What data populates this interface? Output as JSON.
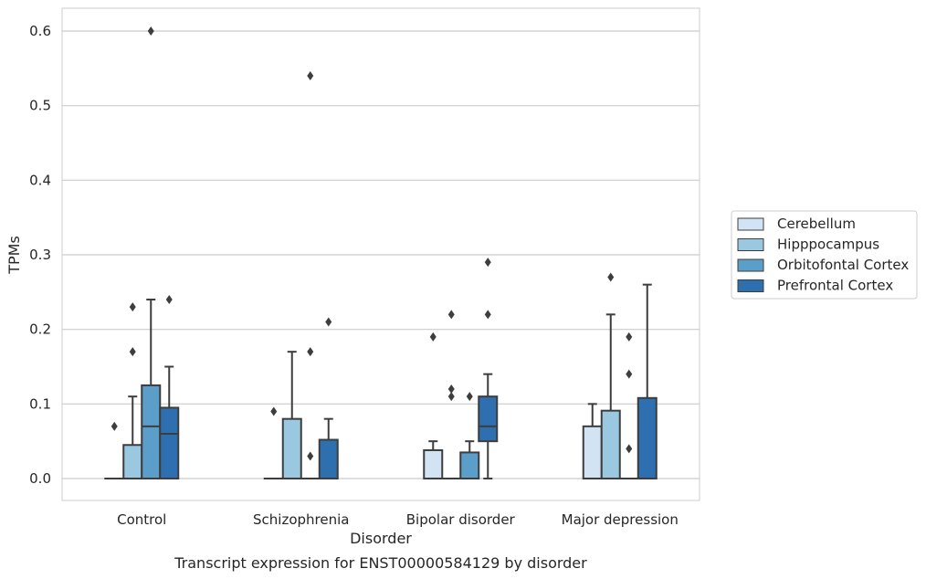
{
  "chart_data": {
    "type": "boxplot",
    "title": "",
    "caption": "Transcript expression for ENST00000584129 by disorder",
    "xlabel": "Disorder",
    "ylabel": "TPMs",
    "ylim": [
      -0.03,
      0.63
    ],
    "yticks": [
      0.0,
      0.1,
      0.2,
      0.3,
      0.4,
      0.5,
      0.6
    ],
    "ytick_labels": [
      "0.0",
      "0.1",
      "0.2",
      "0.3",
      "0.4",
      "0.5",
      "0.6"
    ],
    "grid": "horizontal",
    "legend_placement": "outside-right",
    "categories": [
      "Control",
      "Schizophrenia",
      "Bipolar disorder",
      "Major depression"
    ],
    "series": [
      {
        "name": "Cerebellum",
        "color": "#d2e3f3",
        "boxes": [
          {
            "whislo": 0,
            "q1": 0,
            "med": 0,
            "q3": 0,
            "whishi": 0,
            "fliers": [
              0.07
            ]
          },
          {
            "whislo": 0,
            "q1": 0,
            "med": 0,
            "q3": 0,
            "whishi": 0,
            "fliers": [
              0.09
            ]
          },
          {
            "whislo": 0,
            "q1": 0,
            "med": 0,
            "q3": 0.038,
            "whishi": 0.05,
            "fliers": [
              0.19
            ]
          },
          {
            "whislo": 0,
            "q1": 0,
            "med": 0,
            "q3": 0.07,
            "whishi": 0.1,
            "fliers": []
          }
        ]
      },
      {
        "name": "Hipppocampus",
        "color": "#9ac8e0",
        "boxes": [
          {
            "whislo": 0,
            "q1": 0,
            "med": 0,
            "q3": 0.045,
            "whishi": 0.11,
            "fliers": [
              0.17,
              0.23
            ]
          },
          {
            "whislo": 0,
            "q1": 0,
            "med": 0,
            "q3": 0.08,
            "whishi": 0.17,
            "fliers": []
          },
          {
            "whislo": 0,
            "q1": 0,
            "med": 0,
            "q3": 0,
            "whishi": 0,
            "fliers": [
              0.11,
              0.12,
              0.22
            ]
          },
          {
            "whislo": 0,
            "q1": 0,
            "med": 0,
            "q3": 0.091,
            "whishi": 0.22,
            "fliers": [
              0.27
            ]
          }
        ]
      },
      {
        "name": "Orbitofontal Cortex",
        "color": "#5a9ec9",
        "boxes": [
          {
            "whislo": 0,
            "q1": 0,
            "med": 0.07,
            "q3": 0.125,
            "whishi": 0.24,
            "fliers": [
              0.6
            ]
          },
          {
            "whislo": 0,
            "q1": 0,
            "med": 0,
            "q3": 0,
            "whishi": 0,
            "fliers": [
              0.03,
              0.17,
              0.54
            ]
          },
          {
            "whislo": 0,
            "q1": 0,
            "med": 0,
            "q3": 0.035,
            "whishi": 0.05,
            "fliers": [
              0.11
            ]
          },
          {
            "whislo": 0,
            "q1": 0,
            "med": 0,
            "q3": 0,
            "whishi": 0,
            "fliers": [
              0.04,
              0.14,
              0.19
            ]
          }
        ]
      },
      {
        "name": "Prefrontal Cortex",
        "color": "#2d6faf",
        "boxes": [
          {
            "whislo": 0,
            "q1": 0,
            "med": 0.06,
            "q3": 0.095,
            "whishi": 0.15,
            "fliers": [
              0.24
            ]
          },
          {
            "whislo": 0,
            "q1": 0,
            "med": 0,
            "q3": 0.052,
            "whishi": 0.08,
            "fliers": [
              0.21
            ]
          },
          {
            "whislo": 0,
            "q1": 0.05,
            "med": 0.07,
            "q3": 0.11,
            "whishi": 0.14,
            "fliers": [
              0.22,
              0.29
            ]
          },
          {
            "whislo": 0,
            "q1": 0,
            "med": 0,
            "q3": 0.108,
            "whishi": 0.26,
            "fliers": []
          }
        ]
      }
    ]
  },
  "colors": {
    "grid": "#cccccc",
    "frame": "#cccccc",
    "box_edge": "#3d3d3d",
    "background": "#ffffff"
  }
}
